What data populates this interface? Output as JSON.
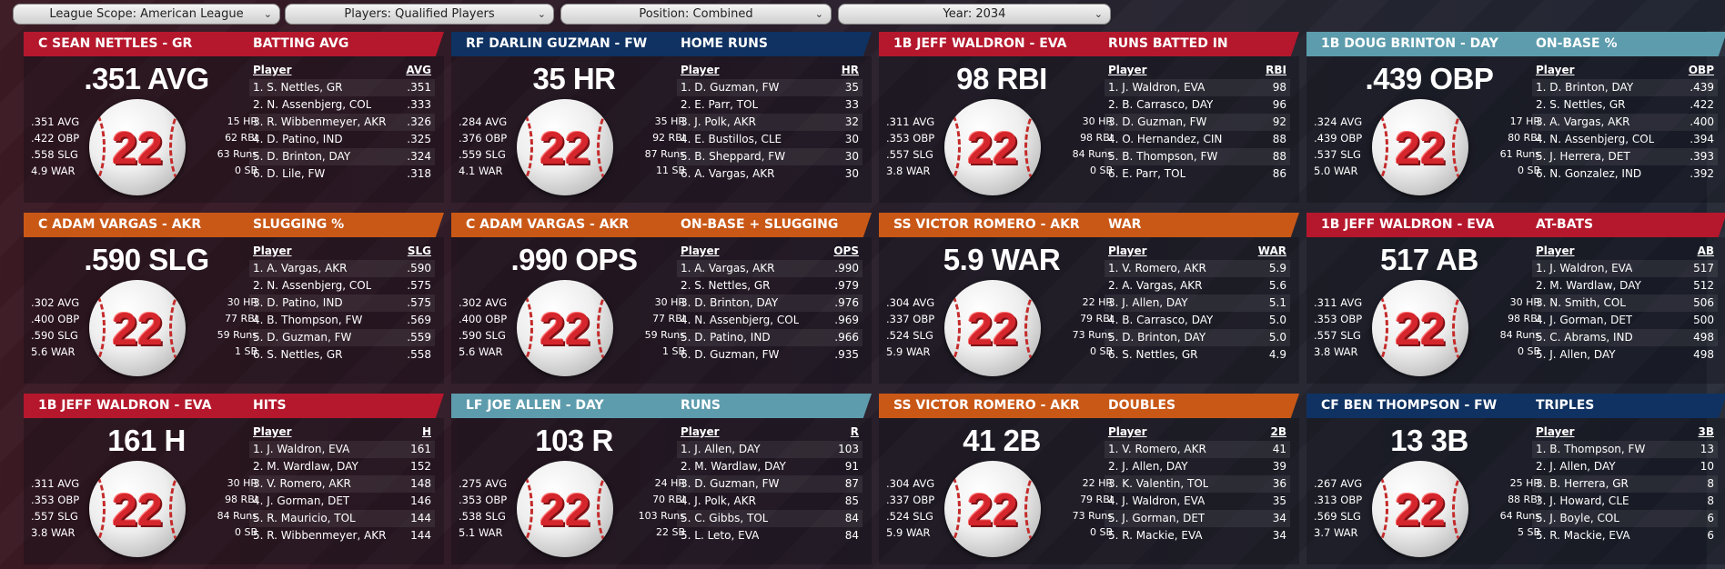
{
  "filters": [
    {
      "label": "League Scope: American League"
    },
    {
      "label": "Players: Qualified Players"
    },
    {
      "label": "Position: Combined"
    },
    {
      "label": "Year: 2034"
    }
  ],
  "colors": {
    "red": "#b5182d",
    "navy": "#0f3262",
    "teal": "#5d9cad",
    "orange": "#c95817",
    "ball_number": "#d4262c"
  },
  "cards": [
    {
      "player": "C SEAN NETTLES - GR",
      "stat": "BATTING AVG",
      "big": ".351 AVG",
      "number": "22",
      "left": [
        ".351 AVG",
        ".422 OBP",
        ".558 SLG",
        "4.9 WAR"
      ],
      "right": [
        "15 HR",
        "62 RBI",
        "63 Runs",
        "0 SB"
      ],
      "col_player": "Player",
      "col_stat": "AVG",
      "leaders": [
        [
          "1. S. Nettles, GR",
          ".351"
        ],
        [
          "2. N. Assenbjerg, COL",
          ".333"
        ],
        [
          "3. R. Wibbenmeyer, AKR",
          ".326"
        ],
        [
          "4. D. Patino, IND",
          ".325"
        ],
        [
          "5. D. Brinton, DAY",
          ".324"
        ],
        [
          "6. D. Lile, FW",
          ".318"
        ]
      ]
    },
    {
      "player": "RF DARLIN GUZMAN - FW",
      "stat": "HOME RUNS",
      "big": "35 HR",
      "number": "22",
      "left": [
        ".284 AVG",
        ".376 OBP",
        ".559 SLG",
        "4.1 WAR"
      ],
      "right": [
        "35 HR",
        "92 RBI",
        "87 Runs",
        "11 SB"
      ],
      "col_player": "Player",
      "col_stat": "HR",
      "leaders": [
        [
          "1. D. Guzman, FW",
          "35"
        ],
        [
          "2. E. Parr, TOL",
          "33"
        ],
        [
          "3. J. Polk, AKR",
          "32"
        ],
        [
          "4. E. Bustillos, CLE",
          "30"
        ],
        [
          "5. B. Sheppard, FW",
          "30"
        ],
        [
          "6. A. Vargas, AKR",
          "30"
        ]
      ]
    },
    {
      "player": "1B JEFF WALDRON - EVA",
      "stat": "RUNS BATTED IN",
      "big": "98 RBI",
      "number": "22",
      "left": [
        ".311 AVG",
        ".353 OBP",
        ".557 SLG",
        "3.8 WAR"
      ],
      "right": [
        "30 HR",
        "98 RBI",
        "84 Runs",
        "0 SB"
      ],
      "col_player": "Player",
      "col_stat": "RBI",
      "leaders": [
        [
          "1. J. Waldron, EVA",
          "98"
        ],
        [
          "2. B. Carrasco, DAY",
          "96"
        ],
        [
          "3. D. Guzman, FW",
          "92"
        ],
        [
          "4. O. Hernandez, CIN",
          "88"
        ],
        [
          "5. B. Thompson, FW",
          "88"
        ],
        [
          "6. E. Parr, TOL",
          "86"
        ]
      ]
    },
    {
      "player": "1B DOUG BRINTON - DAY",
      "stat": "ON-BASE %",
      "big": ".439 OBP",
      "number": "22",
      "left": [
        ".324 AVG",
        ".439 OBP",
        ".537 SLG",
        "5.0 WAR"
      ],
      "right": [
        "17 HR",
        "80 RBI",
        "61 Runs",
        "0 SB"
      ],
      "col_player": "Player",
      "col_stat": "OBP",
      "leaders": [
        [
          "1. D. Brinton, DAY",
          ".439"
        ],
        [
          "2. S. Nettles, GR",
          ".422"
        ],
        [
          "3. A. Vargas, AKR",
          ".400"
        ],
        [
          "4. N. Assenbjerg, COL",
          ".394"
        ],
        [
          "5. J. Herrera, DET",
          ".393"
        ],
        [
          "6. N. Gonzalez, IND",
          ".392"
        ]
      ]
    },
    {
      "player": "C ADAM VARGAS - AKR",
      "stat": "SLUGGING %",
      "big": ".590 SLG",
      "number": "22",
      "left": [
        ".302 AVG",
        ".400 OBP",
        ".590 SLG",
        "5.6 WAR"
      ],
      "right": [
        "30 HR",
        "77 RBI",
        "59 Runs",
        "1 SB"
      ],
      "col_player": "Player",
      "col_stat": "SLG",
      "leaders": [
        [
          "1. A. Vargas, AKR",
          ".590"
        ],
        [
          "2. N. Assenbjerg, COL",
          ".575"
        ],
        [
          "3. D. Patino, IND",
          ".575"
        ],
        [
          "4. B. Thompson, FW",
          ".569"
        ],
        [
          "5. D. Guzman, FW",
          ".559"
        ],
        [
          "6. S. Nettles, GR",
          ".558"
        ]
      ]
    },
    {
      "player": "C ADAM VARGAS - AKR",
      "stat": "ON-BASE + SLUGGING",
      "big": ".990 OPS",
      "number": "22",
      "left": [
        ".302 AVG",
        ".400 OBP",
        ".590 SLG",
        "5.6 WAR"
      ],
      "right": [
        "30 HR",
        "77 RBI",
        "59 Runs",
        "1 SB"
      ],
      "col_player": "Player",
      "col_stat": "OPS",
      "leaders": [
        [
          "1. A. Vargas, AKR",
          ".990"
        ],
        [
          "2. S. Nettles, GR",
          ".979"
        ],
        [
          "3. D. Brinton, DAY",
          ".976"
        ],
        [
          "4. N. Assenbjerg, COL",
          ".969"
        ],
        [
          "5. D. Patino, IND",
          ".966"
        ],
        [
          "6. D. Guzman, FW",
          ".935"
        ]
      ]
    },
    {
      "player": "SS VICTOR ROMERO - AKR",
      "stat": "WAR",
      "big": "5.9 WAR",
      "number": "22",
      "left": [
        ".304 AVG",
        ".337 OBP",
        ".524 SLG",
        "5.9 WAR"
      ],
      "right": [
        "22 HR",
        "79 RBI",
        "73 Runs",
        "0 SB"
      ],
      "col_player": "Player",
      "col_stat": "WAR",
      "leaders": [
        [
          "1. V. Romero, AKR",
          "5.9"
        ],
        [
          "2. A. Vargas, AKR",
          "5.6"
        ],
        [
          "3. J. Allen, DAY",
          "5.1"
        ],
        [
          "4. B. Carrasco, DAY",
          "5.0"
        ],
        [
          "5. D. Brinton, DAY",
          "5.0"
        ],
        [
          "6. S. Nettles, GR",
          "4.9"
        ]
      ]
    },
    {
      "player": "1B JEFF WALDRON - EVA",
      "stat": "AT-BATS",
      "big": "517 AB",
      "number": "22",
      "left": [
        ".311 AVG",
        ".353 OBP",
        ".557 SLG",
        "3.8 WAR"
      ],
      "right": [
        "30 HR",
        "98 RBI",
        "84 Runs",
        "0 SB"
      ],
      "col_player": "Player",
      "col_stat": "AB",
      "leaders": [
        [
          "1. J. Waldron, EVA",
          "517"
        ],
        [
          "2. M. Wardlaw, DAY",
          "512"
        ],
        [
          "3. N. Smith, COL",
          "506"
        ],
        [
          "4. J. Gorman, DET",
          "500"
        ],
        [
          "5. C. Abrams, IND",
          "498"
        ],
        [
          "5. J. Allen, DAY",
          "498"
        ]
      ]
    },
    {
      "player": "1B JEFF WALDRON - EVA",
      "stat": "HITS",
      "big": "161 H",
      "number": "22",
      "left": [
        ".311 AVG",
        ".353 OBP",
        ".557 SLG",
        "3.8 WAR"
      ],
      "right": [
        "30 HR",
        "98 RBI",
        "84 Runs",
        "0 SB"
      ],
      "col_player": "Player",
      "col_stat": "H",
      "leaders": [
        [
          "1. J. Waldron, EVA",
          "161"
        ],
        [
          "2. M. Wardlaw, DAY",
          "152"
        ],
        [
          "3. V. Romero, AKR",
          "148"
        ],
        [
          "4. J. Gorman, DET",
          "146"
        ],
        [
          "5. R. Mauricio, TOL",
          "144"
        ],
        [
          "5. R. Wibbenmeyer, AKR",
          "144"
        ]
      ]
    },
    {
      "player": "LF JOE ALLEN - DAY",
      "stat": "RUNS",
      "big": "103 R",
      "number": "22",
      "left": [
        ".275 AVG",
        ".353 OBP",
        ".538 SLG",
        "5.1 WAR"
      ],
      "right": [
        "24 HR",
        "70 RBI",
        "103 Runs",
        "22 SB"
      ],
      "col_player": "Player",
      "col_stat": "R",
      "leaders": [
        [
          "1. J. Allen, DAY",
          "103"
        ],
        [
          "2. M. Wardlaw, DAY",
          "91"
        ],
        [
          "3. D. Guzman, FW",
          "87"
        ],
        [
          "4. J. Polk, AKR",
          "85"
        ],
        [
          "5. C. Gibbs, TOL",
          "84"
        ],
        [
          "5. L. Leto, EVA",
          "84"
        ]
      ]
    },
    {
      "player": "SS VICTOR ROMERO - AKR",
      "stat": "DOUBLES",
      "big": "41 2B",
      "number": "22",
      "left": [
        ".304 AVG",
        ".337 OBP",
        ".524 SLG",
        "5.9 WAR"
      ],
      "right": [
        "22 HR",
        "79 RBI",
        "73 Runs",
        "0 SB"
      ],
      "col_player": "Player",
      "col_stat": "2B",
      "leaders": [
        [
          "1. V. Romero, AKR",
          "41"
        ],
        [
          "2. J. Allen, DAY",
          "39"
        ],
        [
          "3. K. Valentin, TOL",
          "36"
        ],
        [
          "4. J. Waldron, EVA",
          "35"
        ],
        [
          "5. J. Gorman, DET",
          "34"
        ],
        [
          "5. R. Mackie, EVA",
          "34"
        ]
      ]
    },
    {
      "player": "CF BEN THOMPSON - FW",
      "stat": "TRIPLES",
      "big": "13 3B",
      "number": "22",
      "left": [
        ".267 AVG",
        ".313 OBP",
        ".569 SLG",
        "3.7 WAR"
      ],
      "right": [
        "25 HR",
        "88 RBI",
        "64 Runs",
        "5 SB"
      ],
      "col_player": "Player",
      "col_stat": "3B",
      "leaders": [
        [
          "1. B. Thompson, FW",
          "13"
        ],
        [
          "2. J. Allen, DAY",
          "10"
        ],
        [
          "3. B. Herrera, GR",
          "8"
        ],
        [
          "3. J. Howard, CLE",
          "8"
        ],
        [
          "5. J. Boyle, COL",
          "6"
        ],
        [
          "5. R. Mackie, EVA",
          "6"
        ]
      ]
    }
  ]
}
